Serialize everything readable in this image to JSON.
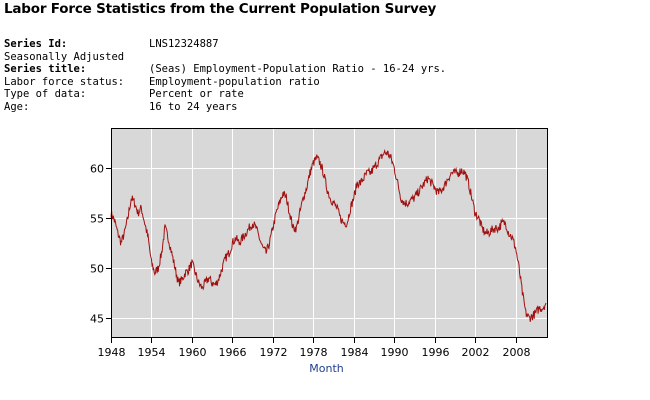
{
  "page_title": "Labor Force Statistics from the Current Population Survey",
  "series_info": {
    "series_id_label": "Series Id:",
    "series_id": "LNS12324887",
    "adjustment": "Seasonally Adjusted",
    "series_title_label": "Series title:",
    "series_title": "(Seas) Employment-Population Ratio - 16-24 yrs.",
    "labor_force_status_label": "Labor force status:",
    "labor_force_status": "Employment-population ratio",
    "type_of_data_label": "Type of data:",
    "type_of_data": "Percent or rate",
    "age_label": "Age:",
    "age": "16 to 24 years"
  },
  "colors": {
    "line": "#a01010",
    "plot_bg": "#d8d8d8",
    "grid": "#ffffff",
    "xlabel": "#1f3f8f"
  },
  "chart_data": {
    "type": "line",
    "title": "",
    "xlabel": "Month",
    "ylabel": "",
    "xlim": [
      1948,
      2012.8
    ],
    "ylim": [
      43,
      64
    ],
    "x_ticks": [
      "1948",
      "1954",
      "1960",
      "1966",
      "1972",
      "1978",
      "1984",
      "1990",
      "1996",
      "2002",
      "2008"
    ],
    "y_ticks": [
      "45",
      "50",
      "55",
      "60"
    ],
    "grid": true,
    "series": [
      {
        "x": [
          1948.0,
          1948.5,
          1949.0,
          1949.5,
          1950.0,
          1950.5,
          1951.0,
          1951.5,
          1952.0,
          1952.5,
          1953.0,
          1953.5,
          1954.0,
          1954.5,
          1955.0,
          1955.5,
          1956.0,
          1956.5,
          1957.0,
          1957.5,
          1958.0,
          1958.5,
          1959.0,
          1959.5,
          1960.0,
          1960.5,
          1961.0,
          1961.5,
          1962.0,
          1962.5,
          1963.0,
          1963.5,
          1964.0,
          1964.5,
          1965.0,
          1965.5,
          1966.0,
          1966.5,
          1967.0,
          1967.5,
          1968.0,
          1968.5,
          1969.0,
          1969.5,
          1970.0,
          1970.5,
          1971.0,
          1971.5,
          1972.0,
          1972.5,
          1973.0,
          1973.5,
          1974.0,
          1974.5,
          1975.0,
          1975.5,
          1976.0,
          1976.5,
          1977.0,
          1977.5,
          1978.0,
          1978.5,
          1979.0,
          1979.5,
          1980.0,
          1980.5,
          1981.0,
          1981.5,
          1982.0,
          1982.5,
          1983.0,
          1983.5,
          1984.0,
          1984.5,
          1985.0,
          1985.5,
          1986.0,
          1986.5,
          1987.0,
          1987.5,
          1988.0,
          1988.5,
          1989.0,
          1989.5,
          1990.0,
          1990.5,
          1991.0,
          1991.5,
          1992.0,
          1992.5,
          1993.0,
          1993.5,
          1994.0,
          1994.5,
          1995.0,
          1995.5,
          1996.0,
          1996.5,
          1997.0,
          1997.5,
          1998.0,
          1998.5,
          1999.0,
          1999.5,
          2000.0,
          2000.5,
          2001.0,
          2001.5,
          2002.0,
          2002.5,
          2003.0,
          2003.5,
          2004.0,
          2004.5,
          2005.0,
          2005.5,
          2006.0,
          2006.5,
          2007.0,
          2007.5,
          2008.0,
          2008.5,
          2009.0,
          2009.5,
          2010.0,
          2010.5,
          2011.0,
          2011.5,
          2012.0,
          2012.5
        ],
        "values": [
          55.5,
          54.8,
          53.5,
          52.5,
          53.5,
          55.0,
          57.0,
          56.5,
          55.5,
          56.0,
          54.5,
          53.0,
          50.5,
          49.5,
          50.0,
          51.5,
          54.0,
          53.0,
          51.5,
          50.0,
          48.5,
          48.8,
          49.5,
          49.8,
          50.5,
          49.5,
          48.5,
          48.0,
          48.5,
          49.0,
          48.5,
          48.3,
          49.0,
          50.0,
          51.0,
          51.5,
          52.5,
          53.0,
          52.5,
          53.0,
          53.5,
          54.0,
          54.5,
          54.0,
          53.0,
          52.0,
          51.5,
          52.5,
          54.0,
          55.5,
          56.5,
          57.5,
          57.0,
          55.5,
          54.0,
          54.0,
          55.5,
          57.0,
          58.0,
          59.5,
          60.5,
          61.0,
          60.5,
          59.5,
          58.0,
          57.0,
          56.5,
          56.0,
          55.0,
          54.5,
          54.5,
          56.0,
          57.0,
          58.5,
          58.5,
          59.0,
          59.5,
          59.5,
          60.0,
          60.5,
          61.0,
          61.5,
          61.5,
          61.0,
          60.0,
          58.5,
          57.0,
          56.5,
          56.5,
          56.8,
          57.0,
          57.5,
          58.0,
          58.5,
          59.0,
          58.5,
          58.0,
          57.5,
          57.8,
          58.3,
          59.0,
          59.5,
          59.5,
          59.5,
          59.8,
          59.5,
          58.5,
          57.0,
          55.5,
          55.0,
          54.0,
          53.5,
          53.5,
          53.8,
          54.0,
          54.0,
          54.5,
          54.5,
          53.5,
          53.0,
          52.0,
          50.0,
          47.5,
          45.5,
          45.0,
          45.2,
          45.5,
          46.0,
          46.0,
          46.5
        ]
      }
    ]
  }
}
